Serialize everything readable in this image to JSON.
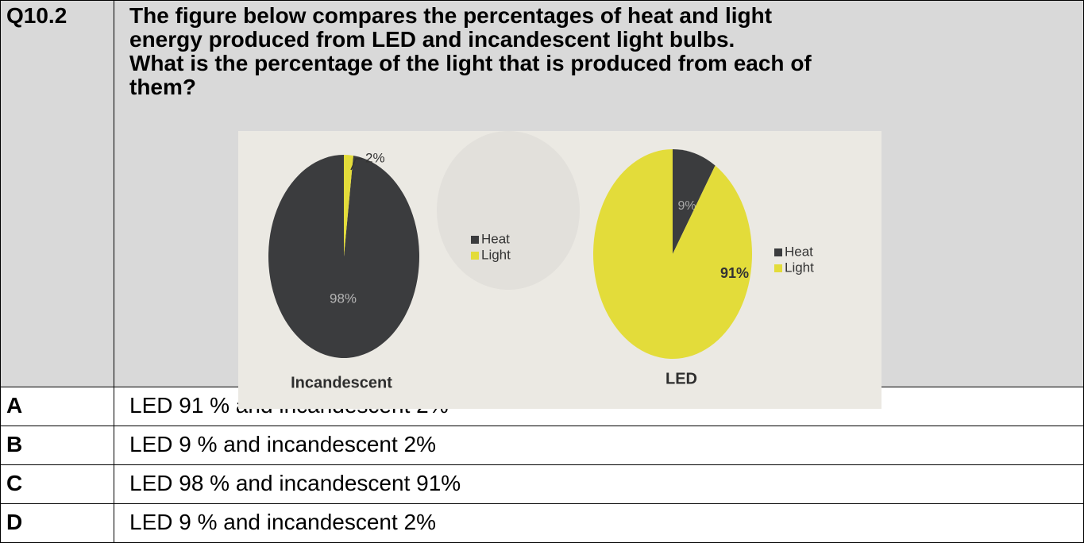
{
  "question": {
    "number": "Q10.2",
    "lines": [
      "The figure below compares the percentages of heat and light",
      "energy produced from LED and incandescent light bulbs.",
      "What is the percentage of the light that is produced from each of",
      "them?"
    ]
  },
  "figure": {
    "charts": [
      {
        "type": "pie",
        "title": "Incandescent",
        "categories": [
          "Heat",
          "Light"
        ],
        "values": [
          98,
          2
        ],
        "value_labels": [
          "98%",
          "2%"
        ],
        "colors": [
          "#3b3c3e",
          "#e3dc3a"
        ]
      },
      {
        "type": "pie",
        "title": "LED",
        "categories": [
          "Heat",
          "Light"
        ],
        "values": [
          9,
          91
        ],
        "value_labels": [
          "9%",
          "91%"
        ],
        "colors": [
          "#3b3c3e",
          "#e3dc3a"
        ]
      }
    ]
  },
  "options": [
    {
      "letter": "A",
      "text": "LED 91 % and incandescent 2%"
    },
    {
      "letter": "B",
      "text": "LED 9 % and incandescent 2%"
    },
    {
      "letter": "C",
      "text": "LED 98 % and incandescent 91%"
    },
    {
      "letter": "D",
      "text": "LED 9 % and incandescent 2%"
    }
  ]
}
